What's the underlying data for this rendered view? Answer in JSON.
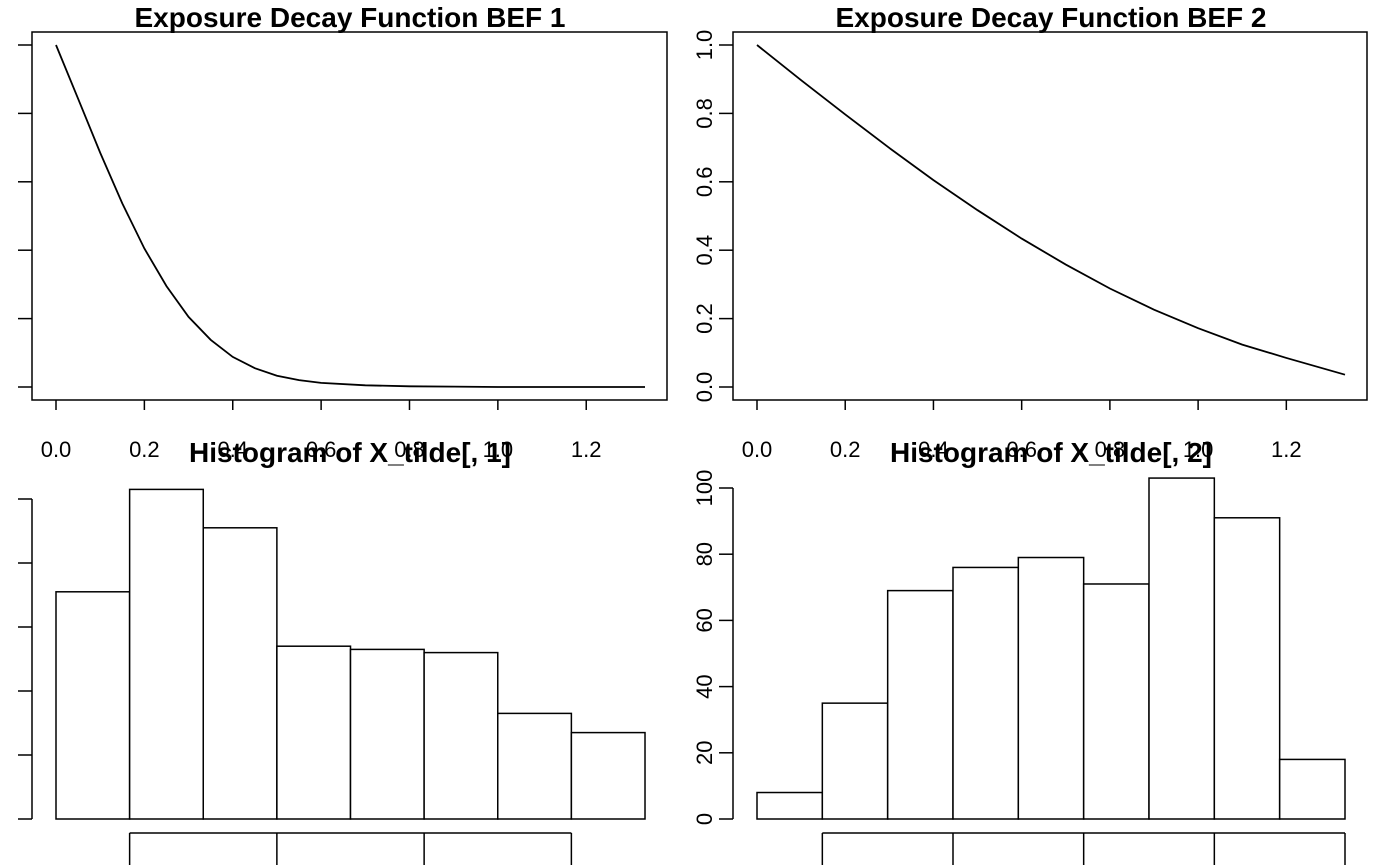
{
  "chart_data": [
    {
      "type": "line",
      "title": "Exposure Decay Function BEF 1",
      "xlabel": "",
      "ylabel": "",
      "xlim": [
        0,
        1.333
      ],
      "ylim": [
        0,
        1
      ],
      "x_ticks": [
        "0.0",
        "0.2",
        "0.4",
        "0.6",
        "0.8",
        "1.0",
        "1.2"
      ],
      "y_ticks": [
        "0.0",
        "0.2",
        "0.4",
        "0.6",
        "0.8",
        "1.0"
      ],
      "show_x_tick_labels": true,
      "show_y_tick_labels": false,
      "grid": false,
      "x": [
        0.0,
        0.05,
        0.1,
        0.15,
        0.2,
        0.25,
        0.3,
        0.35,
        0.4,
        0.45,
        0.5,
        0.55,
        0.6,
        0.7,
        0.8,
        0.9,
        1.0,
        1.1,
        1.2,
        1.333
      ],
      "y": [
        1.0,
        0.843,
        0.685,
        0.537,
        0.405,
        0.295,
        0.205,
        0.138,
        0.088,
        0.055,
        0.033,
        0.02,
        0.012,
        0.005,
        0.002,
        0.001,
        0.0,
        0.0,
        0.0,
        0.0
      ]
    },
    {
      "type": "line",
      "title": "Exposure Decay Function BEF 2",
      "xlabel": "",
      "ylabel": "",
      "xlim": [
        0,
        1.333
      ],
      "ylim": [
        0,
        1
      ],
      "x_ticks": [
        "0.0",
        "0.2",
        "0.4",
        "0.6",
        "0.8",
        "1.0",
        "1.2"
      ],
      "y_ticks": [
        "0.0",
        "0.2",
        "0.4",
        "0.6",
        "0.8",
        "1.0"
      ],
      "show_x_tick_labels": true,
      "show_y_tick_labels": true,
      "grid": false,
      "x": [
        0.0,
        0.1,
        0.2,
        0.3,
        0.4,
        0.5,
        0.6,
        0.7,
        0.8,
        0.9,
        1.0,
        1.1,
        1.2,
        1.333
      ],
      "y": [
        1.0,
        0.897,
        0.797,
        0.699,
        0.605,
        0.517,
        0.434,
        0.358,
        0.288,
        0.226,
        0.172,
        0.124,
        0.085,
        0.036
      ]
    },
    {
      "type": "bar",
      "subtype": "histogram",
      "title": "Histogram of X_tilde[, 1]",
      "xlabel": "",
      "ylabel": "",
      "bins": 8,
      "values": [
        71,
        103,
        91,
        54,
        53,
        52,
        33,
        27
      ],
      "ylim": [
        0,
        100
      ],
      "y_ticks": [
        "0",
        "20",
        "40",
        "60",
        "80",
        "100"
      ],
      "show_y_tick_labels": false,
      "x_tick_bins": [
        1,
        3,
        5,
        7
      ],
      "show_x_tick_labels": false
    },
    {
      "type": "bar",
      "subtype": "histogram",
      "title": "Histogram of X_tilde[, 2]",
      "xlabel": "",
      "ylabel": "",
      "bins": 9,
      "values": [
        8,
        35,
        69,
        76,
        79,
        71,
        103,
        91,
        18
      ],
      "ylim": [
        0,
        100
      ],
      "y_ticks": [
        "0",
        "20",
        "40",
        "60",
        "80",
        "100"
      ],
      "show_y_tick_labels": true,
      "x_tick_bins": [
        1,
        3,
        5,
        7,
        9
      ],
      "show_x_tick_labels": false
    }
  ]
}
